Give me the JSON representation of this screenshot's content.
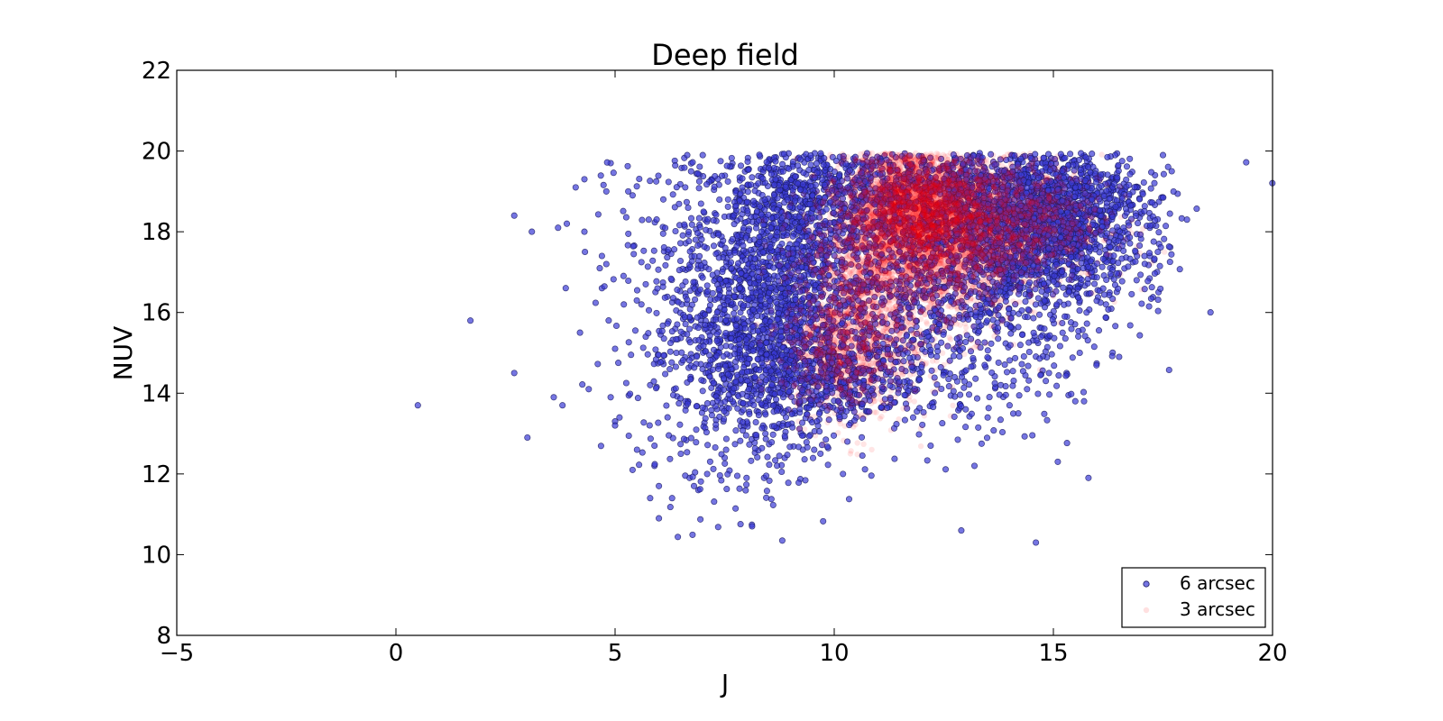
{
  "chart_data": {
    "type": "scatter",
    "title": "Deep field",
    "xlabel": "J",
    "ylabel": "NUV",
    "xlim": [
      -5,
      20
    ],
    "ylim": [
      8,
      22
    ],
    "xticks": [
      -5,
      0,
      5,
      10,
      15,
      20
    ],
    "yticks": [
      8,
      10,
      12,
      14,
      16,
      18,
      20,
      22
    ],
    "xtick_labels": [
      "−5",
      "0",
      "5",
      "10",
      "15",
      "20"
    ],
    "ytick_labels": [
      "8",
      "10",
      "12",
      "14",
      "16",
      "18",
      "20",
      "22"
    ],
    "grid": false,
    "legend_position": "lower-right",
    "series": [
      {
        "name": "6 arcsec",
        "color": "#3b3bd6",
        "edge_color": "#1a1a60",
        "points": [
          [
            0.5,
            13.7
          ],
          [
            1.7,
            15.8
          ],
          [
            2.7,
            18.4
          ],
          [
            2.7,
            14.5
          ],
          [
            3.0,
            12.9
          ],
          [
            3.1,
            18.0
          ],
          [
            3.6,
            13.9
          ],
          [
            3.7,
            18.1
          ],
          [
            3.8,
            13.7
          ],
          [
            3.9,
            18.2
          ],
          [
            4.1,
            19.1
          ],
          [
            4.3,
            19.3
          ],
          [
            4.3,
            18.0
          ],
          [
            4.2,
            15.5
          ],
          [
            4.4,
            14.1
          ],
          [
            4.7,
            17.4
          ],
          [
            4.8,
            17.2
          ],
          [
            4.7,
            16.6
          ],
          [
            4.8,
            19.0
          ],
          [
            4.9,
            19.7
          ],
          [
            4.9,
            13.9
          ],
          [
            5.0,
            13.3
          ],
          [
            5.0,
            13.2
          ],
          [
            5.1,
            13.4
          ],
          [
            5.0,
            15.1
          ],
          [
            5.2,
            16.2
          ],
          [
            5.3,
            19.0
          ],
          [
            5.4,
            18.9
          ],
          [
            5.4,
            12.1
          ],
          [
            5.5,
            12.6
          ],
          [
            5.6,
            16.2
          ],
          [
            5.7,
            16.7
          ],
          [
            5.7,
            15.4
          ],
          [
            5.8,
            14.2
          ],
          [
            5.8,
            11.4
          ],
          [
            5.9,
            12.7
          ],
          [
            5.9,
            12.2
          ],
          [
            6.0,
            10.9
          ],
          [
            6.0,
            11.7
          ],
          [
            6.1,
            18.8
          ],
          [
            6.2,
            17.5
          ],
          [
            6.3,
            11.4
          ],
          [
            6.4,
            15.0
          ],
          [
            6.5,
            12.5
          ],
          [
            6.6,
            19.1
          ],
          [
            6.7,
            11.9
          ],
          [
            6.8,
            11.7
          ],
          [
            6.9,
            11.6
          ],
          [
            7.0,
            19.9
          ],
          [
            7.1,
            12.0
          ],
          [
            7.2,
            19.3
          ],
          [
            7.5,
            12.4
          ],
          [
            8.0,
            11.9
          ],
          [
            8.4,
            11.9
          ],
          [
            10.2,
            12.0
          ],
          [
            10.3,
            12.8
          ],
          [
            10.5,
            13.4
          ],
          [
            12.2,
            12.7
          ],
          [
            12.9,
            10.6
          ],
          [
            13.2,
            12.2
          ],
          [
            13.5,
            13.4
          ],
          [
            14.6,
            10.3
          ],
          [
            15.1,
            12.3
          ],
          [
            15.8,
            11.9
          ],
          [
            17.3,
            17.3
          ],
          [
            17.4,
            16.5
          ],
          [
            17.5,
            19.9
          ],
          [
            17.7,
            19.5
          ],
          [
            17.2,
            18.1
          ],
          [
            16.9,
            16.8
          ],
          [
            16.5,
            14.9
          ],
          [
            15.7,
            13.8
          ],
          [
            15.3,
            14.5
          ],
          [
            15.5,
            13.8
          ],
          [
            14.9,
            14.5
          ],
          [
            14.4,
            14.1
          ],
          [
            14.0,
            13.7
          ],
          [
            13.8,
            14.2
          ],
          [
            12.5,
            14.5
          ],
          [
            11.8,
            13.4
          ],
          [
            11.9,
            14.6
          ],
          [
            13.0,
            13.6
          ],
          [
            14.2,
            13.5
          ],
          [
            15.6,
            15.0
          ],
          [
            16.2,
            16.2
          ]
        ],
        "clusters": [
          {
            "cx": 9.2,
            "cy": 17.2,
            "sx": 1.3,
            "sy": 1.9,
            "n": 1600
          },
          {
            "cx": 8.3,
            "cy": 15.2,
            "sx": 0.9,
            "sy": 1.5,
            "n": 700
          },
          {
            "cx": 13.8,
            "cy": 17.9,
            "sx": 1.5,
            "sy": 1.1,
            "n": 1500
          },
          {
            "cx": 15.2,
            "cy": 18.4,
            "sx": 1.0,
            "sy": 0.9,
            "n": 900
          },
          {
            "cx": 11.8,
            "cy": 19.0,
            "sx": 2.3,
            "sy": 0.6,
            "n": 900
          },
          {
            "cx": 7.2,
            "cy": 15.8,
            "sx": 1.1,
            "sy": 2.2,
            "n": 350
          },
          {
            "cx": 12.8,
            "cy": 15.7,
            "sx": 1.6,
            "sy": 1.3,
            "n": 500
          },
          {
            "cx": 10.1,
            "cy": 14.3,
            "sx": 1.0,
            "sy": 0.6,
            "n": 350
          }
        ]
      },
      {
        "name": "3 arcsec",
        "color": "#ff0000",
        "edge_color": "#ff0000",
        "points": [
          [
            12.5,
            14.7
          ],
          [
            12.3,
            14.3
          ],
          [
            13.0,
            15.5
          ],
          [
            14.1,
            15.2
          ],
          [
            15.0,
            16.4
          ],
          [
            11.4,
            14.5
          ]
        ],
        "clusters": [
          {
            "cx": 11.9,
            "cy": 18.6,
            "sx": 0.8,
            "sy": 0.9,
            "n": 3200
          },
          {
            "cx": 10.8,
            "cy": 16.6,
            "sx": 0.8,
            "sy": 1.4,
            "n": 1700
          },
          {
            "cx": 13.9,
            "cy": 18.3,
            "sx": 1.1,
            "sy": 0.8,
            "n": 1300
          },
          {
            "cx": 10.0,
            "cy": 15.0,
            "sx": 0.6,
            "sy": 0.8,
            "n": 500
          },
          {
            "cx": 12.9,
            "cy": 17.3,
            "sx": 0.7,
            "sy": 0.9,
            "n": 700
          }
        ]
      }
    ]
  }
}
